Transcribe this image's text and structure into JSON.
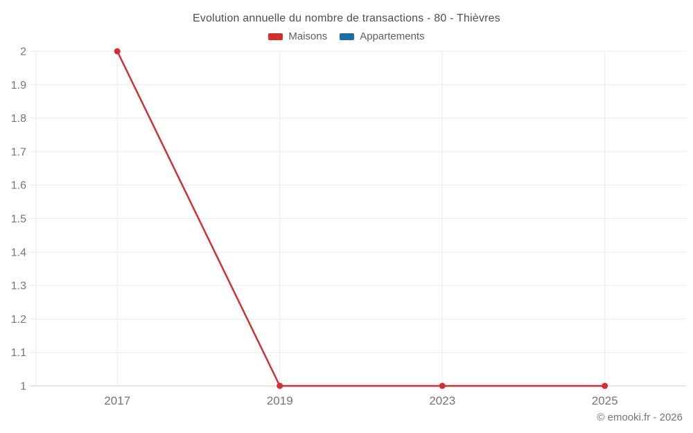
{
  "chart_data": {
    "type": "line",
    "title": "Evolution annuelle du nombre de transactions - 80 - Thièvres",
    "categories": [
      "2017",
      "2019",
      "2023",
      "2025"
    ],
    "series": [
      {
        "name": "Maisons",
        "color": "#d32f2f",
        "values": [
          2,
          1,
          1,
          1
        ]
      },
      {
        "name": "Appartements",
        "color": "#1c6ea4",
        "values": []
      }
    ],
    "xlabel": "",
    "ylabel": "",
    "ylim": [
      1,
      2
    ],
    "y_tick_labels": [
      "1",
      "1.1",
      "1.2",
      "1.3",
      "1.4",
      "1.5",
      "1.6",
      "1.7",
      "1.8",
      "1.9",
      "2"
    ],
    "grid": true,
    "legend_position": "top"
  },
  "colors": {
    "grid": "#ebebeb",
    "axis_line": "#cccccc",
    "tick_text": "#757575",
    "marker_stroke": "#ffffff"
  },
  "footer": {
    "copyright": "© emooki.fr - 2026"
  }
}
